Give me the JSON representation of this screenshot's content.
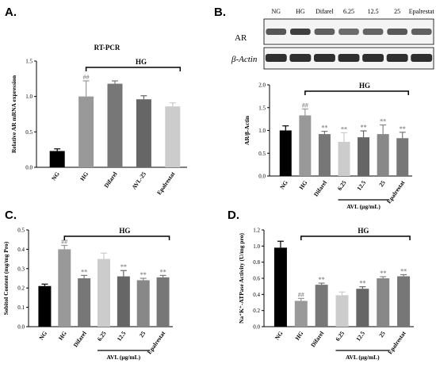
{
  "panels": {
    "a": "A.",
    "b": "B.",
    "c": "C.",
    "d": "D."
  },
  "hg_label": "HG",
  "avl_label": "AVL (μg/mL)",
  "blot": {
    "lanes": [
      "NG",
      "HG",
      "Difarel",
      "6.25",
      "12.5",
      "25",
      "Epalrestat"
    ],
    "rows": [
      "AR",
      "β-Actin"
    ]
  },
  "chart_data": [
    {
      "id": "A",
      "type": "bar",
      "title": "RT-PCR",
      "xlabel": "",
      "ylabel": "Relative AR mRNA expression",
      "categories": [
        "NG",
        "HG",
        "Difarel",
        "AVL-25",
        "Epalrestat"
      ],
      "values": [
        0.23,
        1.0,
        1.18,
        0.96,
        0.86
      ],
      "errors": [
        0.03,
        0.22,
        0.04,
        0.05,
        0.05
      ],
      "colors": [
        "#000000",
        "#999999",
        "#777777",
        "#666666",
        "#cccccc"
      ],
      "significance": [
        "",
        "##",
        "",
        "",
        ""
      ],
      "ylim": [
        0,
        1.5
      ],
      "yticks": [
        "0.0",
        "0.5",
        "1.0",
        "1.5"
      ],
      "hg_bracket": [
        1,
        4
      ],
      "avl_bracket": null
    },
    {
      "id": "B",
      "type": "bar",
      "title": "",
      "xlabel": "",
      "ylabel": "AR/β-Actin",
      "categories": [
        "NG",
        "HG",
        "Difarel",
        "6.25",
        "12.5",
        "25",
        "Epalrestat"
      ],
      "values": [
        1.0,
        1.33,
        0.92,
        0.75,
        0.85,
        0.92,
        0.83
      ],
      "errors": [
        0.1,
        0.14,
        0.06,
        0.2,
        0.14,
        0.2,
        0.13
      ],
      "colors": [
        "#000000",
        "#999999",
        "#777777",
        "#cccccc",
        "#666666",
        "#888888",
        "#777777"
      ],
      "significance": [
        "",
        "##",
        "**",
        "**",
        "**",
        "**",
        "**"
      ],
      "ylim": [
        0,
        2.0
      ],
      "yticks": [
        "0.0",
        "0.5",
        "1.0",
        "1.5",
        "2.0"
      ],
      "hg_bracket": [
        1,
        6
      ],
      "avl_bracket": [
        3,
        5
      ]
    },
    {
      "id": "C",
      "type": "bar",
      "title": "",
      "xlabel": "",
      "ylabel": "Sobitol Content (mg/mg Pro)",
      "categories": [
        "NG",
        "HG",
        "Difarel",
        "6.25",
        "12.5",
        "25",
        "Epalrestat"
      ],
      "values": [
        0.21,
        0.4,
        0.25,
        0.35,
        0.26,
        0.24,
        0.255
      ],
      "errors": [
        0.01,
        0.02,
        0.015,
        0.03,
        0.03,
        0.01,
        0.01
      ],
      "colors": [
        "#000000",
        "#999999",
        "#777777",
        "#cccccc",
        "#666666",
        "#888888",
        "#777777"
      ],
      "significance": [
        "",
        "##",
        "**",
        "",
        "**",
        "**",
        "**"
      ],
      "ylim": [
        0,
        0.5
      ],
      "yticks": [
        "0.0",
        "0.1",
        "0.2",
        "0.3",
        "0.4",
        "0.5"
      ],
      "hg_bracket": [
        1,
        6
      ],
      "avl_bracket": [
        3,
        5
      ]
    },
    {
      "id": "D",
      "type": "bar",
      "title": "",
      "xlabel": "",
      "ylabel": "Na⁺K⁺-ATPase Activity (U/mg pro)",
      "categories": [
        "NG",
        "HG",
        "Difarel",
        "6.25",
        "12.5",
        "25",
        "Epalrestat"
      ],
      "values": [
        0.98,
        0.32,
        0.52,
        0.39,
        0.47,
        0.6,
        0.625
      ],
      "errors": [
        0.08,
        0.03,
        0.02,
        0.04,
        0.025,
        0.02,
        0.02
      ],
      "colors": [
        "#000000",
        "#999999",
        "#777777",
        "#cccccc",
        "#666666",
        "#888888",
        "#777777"
      ],
      "significance": [
        "",
        "##",
        "**",
        "",
        "**",
        "**",
        "**"
      ],
      "ylim": [
        0,
        1.2
      ],
      "yticks": [
        "0.0",
        "0.2",
        "0.4",
        "0.6",
        "0.8",
        "1.0",
        "1.2"
      ],
      "hg_bracket": [
        1,
        6
      ],
      "avl_bracket": [
        3,
        5
      ]
    }
  ]
}
